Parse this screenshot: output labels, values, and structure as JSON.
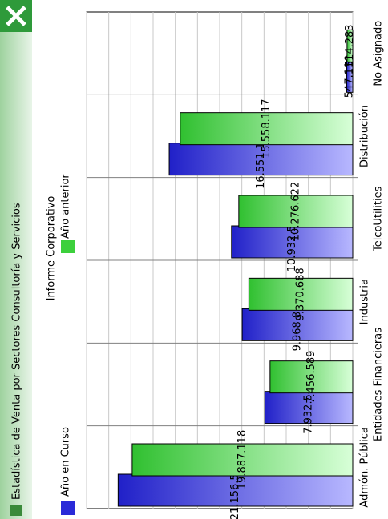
{
  "chart_data": {
    "type": "bar",
    "title": "Estadística de Venta por Sectores Consultoría y Servicios",
    "subtitle": "Informe Corporativo",
    "categories": [
      "Admón. Pública",
      "Entidades Financieras",
      "Industria",
      "TelcoUtilities",
      "Distribución",
      "No Asignado"
    ],
    "series": [
      {
        "name": "Año en Curso",
        "color": "#2a2ad8",
        "values": [
          21156508,
          7932542,
          9968817,
          10932577,
          16551188,
          547110
        ],
        "value_labels": [
          "21.156.508",
          "7.932.542",
          "9.968.817",
          "10.932.577",
          "16.551.188",
          "547.110"
        ]
      },
      {
        "name": "Año anterior",
        "color": "#3cd03c",
        "values": [
          19887118,
          7456589,
          9370688,
          10276622,
          15558117,
          514283
        ],
        "value_labels": [
          "19.887.118",
          "7.456.589",
          "9.370.688",
          "10.276.622",
          "15.558.117",
          "514.283"
        ]
      }
    ],
    "ylim": [
      0,
      24000000
    ],
    "yticks": [
      0,
      2000000,
      4000000,
      6000000,
      8000000,
      10000000,
      12000000,
      14000000,
      16000000,
      18000000,
      20000000,
      22000000,
      24000000
    ],
    "grid": true
  }
}
